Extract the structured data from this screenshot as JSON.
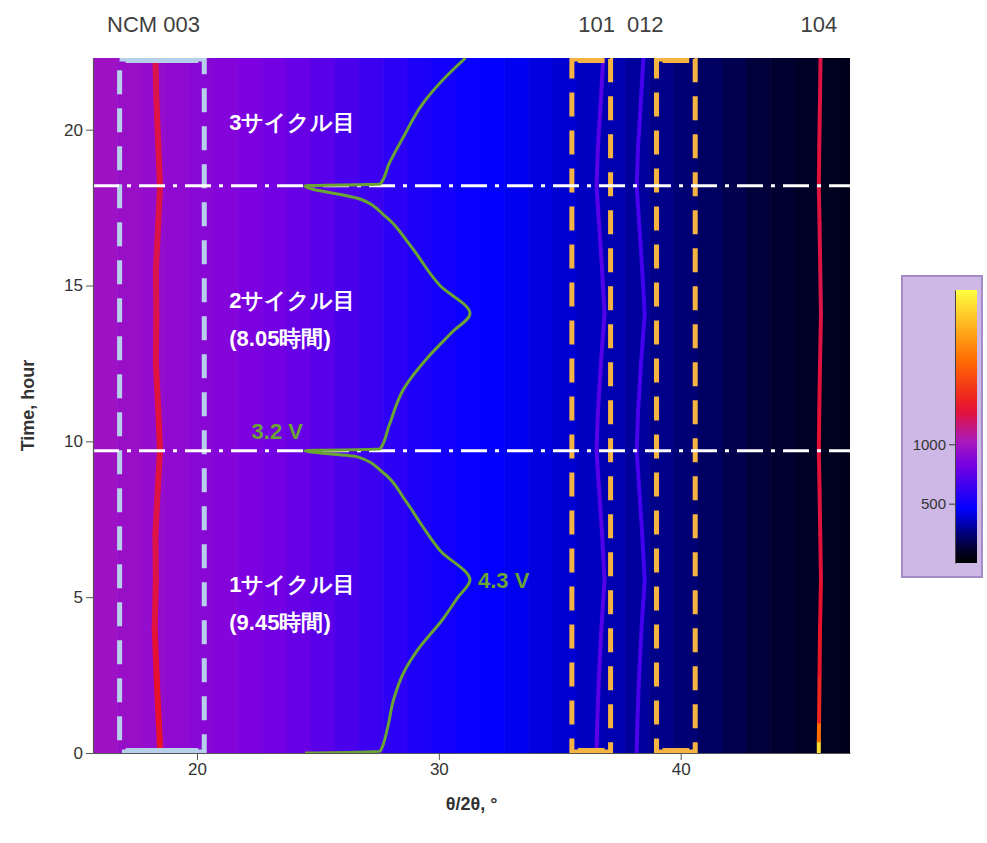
{
  "chart_data": {
    "type": "heatmap",
    "x_label": "θ/2θ, °",
    "y_label": "Time, hour",
    "xlim": [
      15.7,
      47.0
    ],
    "ylim": [
      0,
      22.3
    ],
    "xticks": [
      20,
      30,
      40
    ],
    "yticks": [
      0,
      5,
      10,
      15,
      20
    ],
    "x_edges": [
      15.7,
      16.7,
      17.7,
      18.7,
      19.7,
      20.7,
      21.7,
      22.7,
      23.7,
      24.7,
      25.7,
      26.7,
      27.7,
      28.7,
      29.7,
      30.7,
      31.7,
      32.7,
      33.7,
      34.7,
      35.7,
      36.7,
      37.7,
      38.7,
      39.7,
      40.7,
      41.7,
      42.7,
      43.7,
      44.7,
      45.7,
      46.7,
      47.0
    ],
    "y_edges": [
      0,
      22.3
    ],
    "cells": [
      [
        980,
        960,
        940,
        920,
        900,
        880,
        850,
        820,
        780,
        740,
        690,
        640,
        590,
        545,
        510,
        480,
        455,
        430,
        405,
        380,
        355,
        330,
        300,
        270,
        240,
        210,
        180,
        150,
        125,
        100,
        80,
        70
      ]
    ],
    "colorbar": {
      "range": [
        0,
        2300
      ],
      "ticks": [
        500,
        1000
      ]
    },
    "peaks": [
      {
        "name": "NCM 003",
        "time": [
          0,
          0.4,
          1,
          2.5,
          4,
          5.55,
          7,
          8.5,
          9.7,
          11,
          12.5,
          14.1,
          15.5,
          17,
          18.2,
          19.5,
          21,
          22.3
        ],
        "x": [
          18.47,
          18.46,
          18.42,
          18.33,
          18.25,
          18.3,
          18.28,
          18.38,
          18.47,
          18.4,
          18.3,
          18.32,
          18.3,
          18.4,
          18.47,
          18.4,
          18.32,
          18.28
        ],
        "intensity": [
          1320,
          1310,
          1300,
          1280,
          1260,
          1250,
          1250,
          1260,
          1270,
          1260,
          1250,
          1240,
          1240,
          1250,
          1260,
          1250,
          1240,
          1240
        ]
      },
      {
        "name": "101",
        "time": [
          0,
          0.4,
          1,
          2.5,
          4,
          5.55,
          7,
          8.5,
          9.7,
          11,
          12.5,
          14.1,
          15.5,
          17,
          18.2,
          19.5,
          21,
          22.3
        ],
        "x": [
          36.52,
          36.53,
          36.55,
          36.62,
          36.72,
          36.85,
          36.75,
          36.62,
          36.52,
          36.58,
          36.7,
          36.85,
          36.75,
          36.62,
          36.52,
          36.58,
          36.7,
          36.8
        ],
        "intensity": [
          760,
          750,
          740,
          730,
          720,
          710,
          720,
          730,
          740,
          730,
          720,
          710,
          720,
          730,
          740,
          730,
          720,
          710
        ]
      },
      {
        "name": "012",
        "time": [
          0,
          0.4,
          1,
          2.5,
          4,
          5.55,
          7,
          8.5,
          9.7,
          11,
          12.5,
          14.1,
          15.5,
          17,
          18.2,
          19.5,
          21,
          22.3
        ],
        "x": [
          38.18,
          38.19,
          38.21,
          38.28,
          38.38,
          38.51,
          38.41,
          38.28,
          38.18,
          38.24,
          38.36,
          38.51,
          38.41,
          38.28,
          38.18,
          38.24,
          38.36,
          38.46
        ],
        "intensity": [
          700,
          700,
          690,
          680,
          670,
          660,
          670,
          680,
          690,
          680,
          670,
          660,
          670,
          680,
          690,
          680,
          670,
          660
        ]
      },
      {
        "name": "104",
        "time": [
          0,
          0.4,
          1,
          2.5,
          4,
          5.55,
          7,
          8.5,
          9.7,
          11,
          12.5,
          14.1,
          15.5,
          17,
          18.2,
          19.5,
          21,
          22.3
        ],
        "x": [
          45.71,
          45.71,
          45.72,
          45.74,
          45.76,
          45.8,
          45.77,
          45.74,
          45.71,
          45.73,
          45.76,
          45.8,
          45.77,
          45.74,
          45.71,
          45.73,
          45.76,
          45.78
        ],
        "intensity": [
          2150,
          1700,
          1400,
          1320,
          1290,
          1270,
          1260,
          1270,
          1280,
          1270,
          1250,
          1240,
          1250,
          1260,
          1270,
          1260,
          1250,
          1240
        ]
      }
    ],
    "regions": [
      {
        "x": [
          16.8,
          20.3
        ],
        "color": "#b7d0ea"
      },
      {
        "x": [
          35.5,
          37.1
        ],
        "color": "#f5b441"
      },
      {
        "x": [
          39.0,
          40.6
        ],
        "color": "#f5b441"
      }
    ],
    "cycle_boundaries": [
      9.7,
      18.2
    ],
    "cycles": [
      {
        "label": "1サイクル目",
        "duration": "(9.45時間)"
      },
      {
        "label": "2サイクル目",
        "duration": "(8.05時間)"
      },
      {
        "label": "3サイクル目"
      }
    ],
    "voltage": {
      "color": "#6aa533",
      "time": [
        0,
        0.05,
        0.8,
        1.7,
        2.6,
        3.3,
        4.3,
        5.0,
        5.55,
        6.5,
        7.3,
        8.1,
        9.0,
        9.5,
        9.7,
        9.75,
        10.5,
        11.7,
        12.7,
        13.5,
        14.1,
        15.0,
        16.3,
        17.2,
        17.8,
        18.2,
        18.25,
        18.9,
        19.8,
        20.8,
        21.6,
        22.3
      ],
      "values": [
        3.2,
        3.7,
        3.75,
        3.79,
        3.86,
        3.95,
        4.12,
        4.22,
        4.3,
        4.1,
        3.98,
        3.87,
        3.72,
        3.55,
        3.2,
        3.7,
        3.76,
        3.86,
        4.02,
        4.18,
        4.3,
        4.1,
        3.9,
        3.74,
        3.55,
        3.2,
        3.7,
        3.76,
        3.86,
        3.98,
        4.12,
        4.27
      ],
      "value_labels": [
        null,
        null,
        null,
        null,
        null,
        null,
        null,
        null,
        "4.3 V",
        null,
        null,
        null,
        null,
        null,
        "3.2 V",
        null,
        null,
        null,
        null,
        null,
        null,
        null,
        null,
        null,
        null,
        null,
        null,
        null,
        null,
        null,
        null,
        null
      ]
    }
  }
}
